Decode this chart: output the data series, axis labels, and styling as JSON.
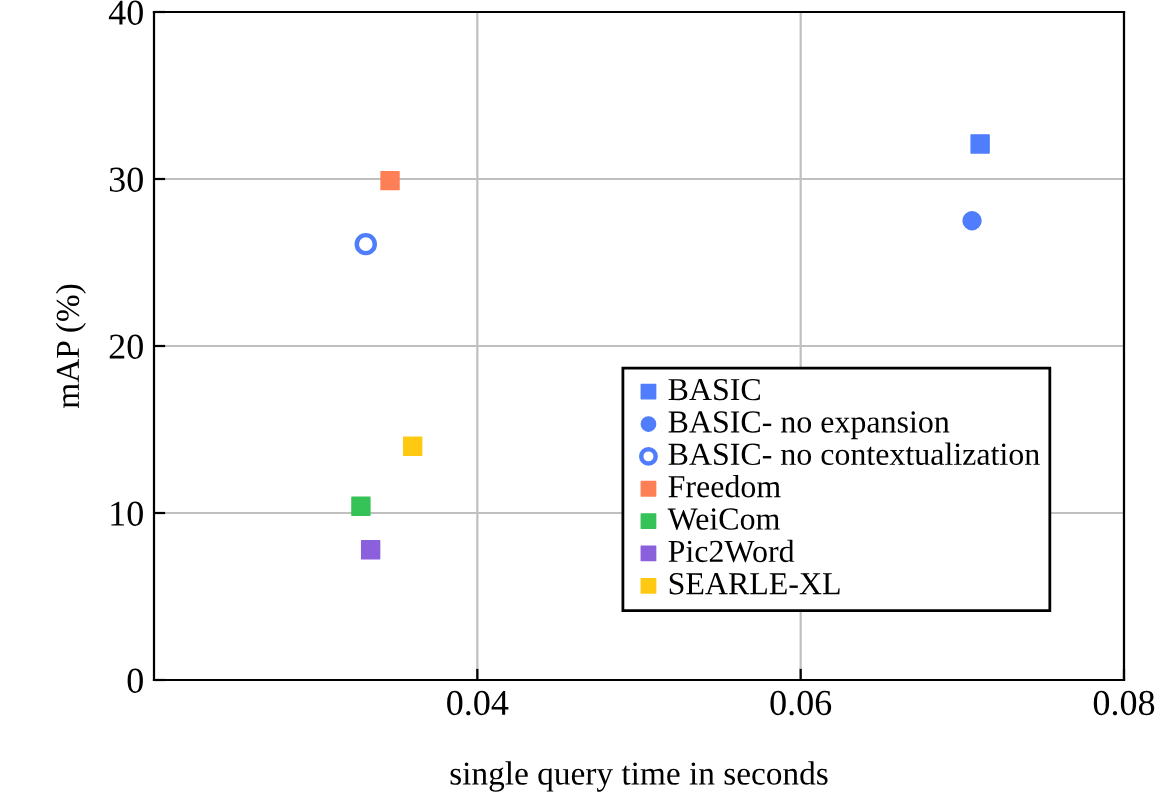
{
  "chart_data": {
    "type": "scatter",
    "xlabel": "single query time in seconds",
    "ylabel": "mAP (%)",
    "xlim": [
      0.02,
      0.08
    ],
    "xticks": [
      0.04,
      0.06,
      0.08
    ],
    "ylim": [
      0,
      40
    ],
    "yticks": [
      0,
      10,
      20,
      30,
      40
    ],
    "grid": true,
    "legend": "bottom right",
    "series": [
      {
        "name": "BASIC",
        "color": "#4f7dfc",
        "marker": "square",
        "x": [
          0.0711
        ],
        "values": [
          32.1
        ]
      },
      {
        "name": "BASIC- no expansion",
        "color": "#4f7dfc",
        "marker": "circle",
        "x": [
          0.0706
        ],
        "values": [
          27.5
        ]
      },
      {
        "name": "BASIC- no contextualization",
        "color": "#4f7dfc",
        "marker": "circle",
        "x": [
          0.0331
        ],
        "values": [
          26.1
        ]
      },
      {
        "name": "Freedom",
        "color": "#fd7f55",
        "marker": "square",
        "x": [
          0.0346
        ],
        "values": [
          29.9
        ]
      },
      {
        "name": "WeiCom",
        "color": "#35c257",
        "marker": "square",
        "x": [
          0.0328
        ],
        "values": [
          10.4
        ]
      },
      {
        "name": "Pic2Word",
        "color": "#8a60dc",
        "marker": "square",
        "x": [
          0.0334
        ],
        "values": [
          7.8
        ]
      },
      {
        "name": "SEARLE-XL",
        "color": "#ffc912",
        "marker": "square",
        "x": [
          0.036
        ],
        "values": [
          14.0
        ]
      }
    ]
  }
}
